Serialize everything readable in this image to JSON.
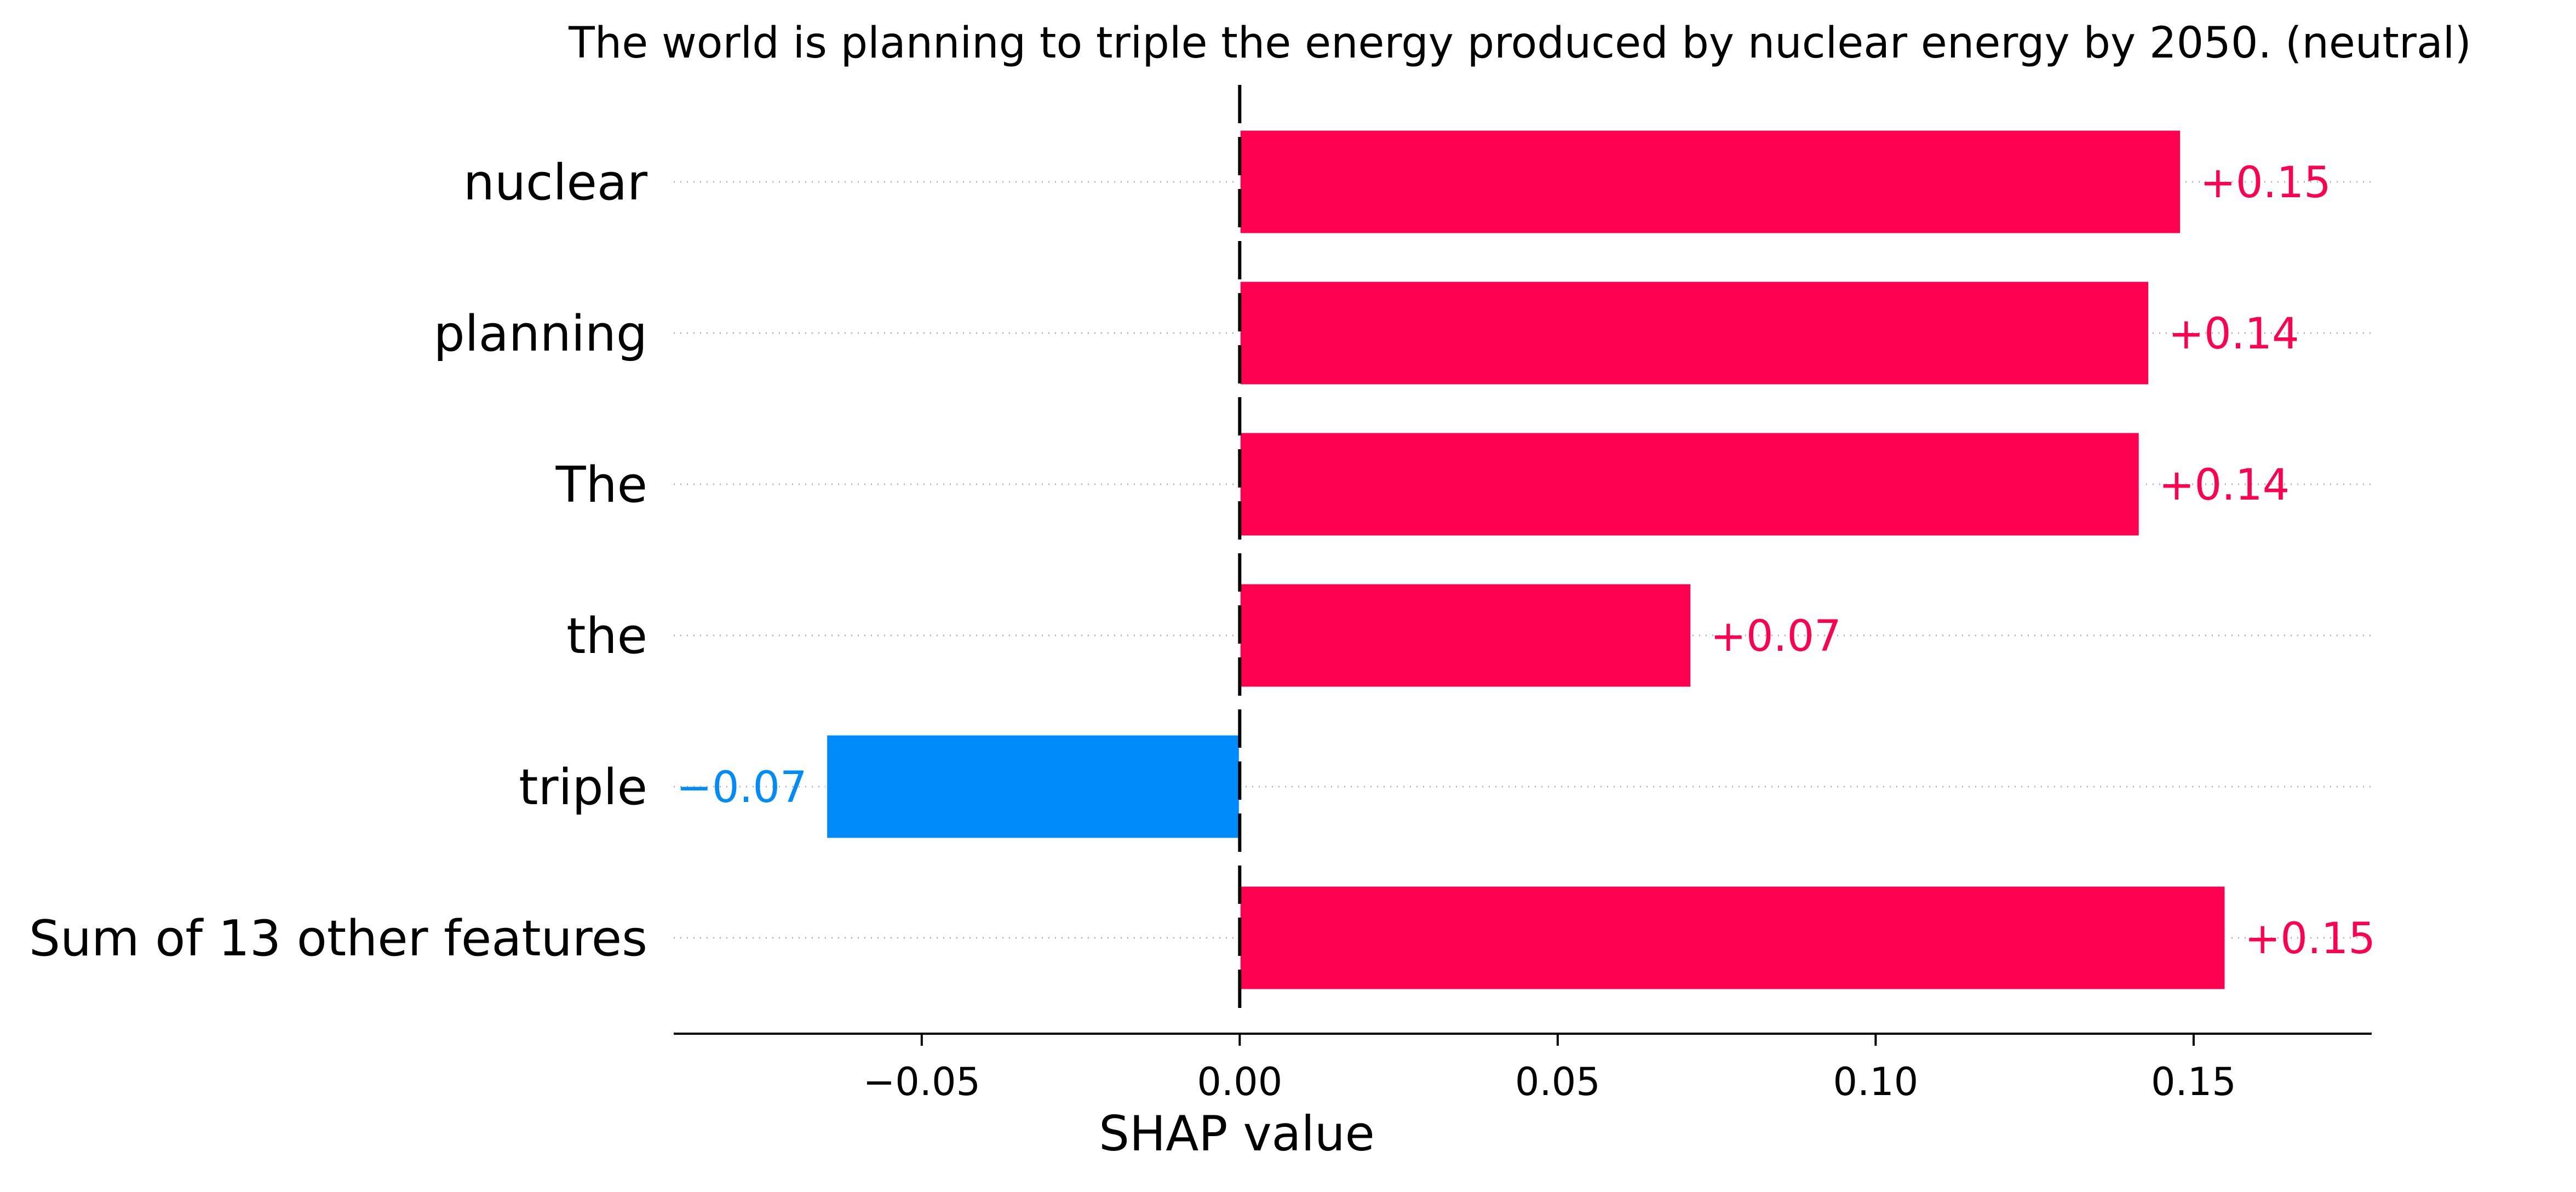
{
  "chart_data": {
    "type": "bar",
    "orientation": "horizontal",
    "title": "The world is planning to triple the energy produced by nuclear energy by 2050.  (neutral)",
    "xlabel": "SHAP value",
    "ylabel": "",
    "categories": [
      "nuclear",
      "planning",
      "The",
      "the",
      "triple",
      "Sum of 13 other features"
    ],
    "values": [
      0.148,
      0.143,
      0.1415,
      0.071,
      -0.065,
      0.155
    ],
    "value_labels": [
      "+0.15",
      "+0.14",
      "+0.14",
      "+0.07",
      "−0.07",
      "+0.15"
    ],
    "xlim": [
      -0.089,
      0.178
    ],
    "xticks": [
      -0.05,
      0.0,
      0.05,
      0.1,
      0.15
    ],
    "xtick_labels": [
      "−0.05",
      "0.00",
      "0.05",
      "0.10",
      "0.15"
    ],
    "positive_color": "#ff0051",
    "negative_color": "#008bfb",
    "grid": false,
    "legend": "none"
  }
}
